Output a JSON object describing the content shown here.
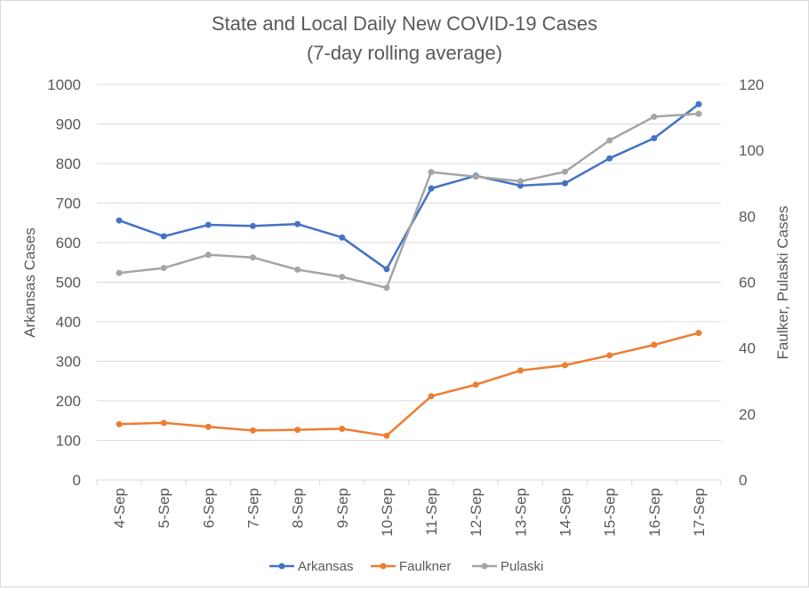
{
  "chart_data": {
    "type": "line",
    "title": "State and Local Daily New COVID-19 Cases",
    "subtitle": "(7-day rolling average)",
    "categories": [
      "4-Sep",
      "5-Sep",
      "6-Sep",
      "7-Sep",
      "8-Sep",
      "9-Sep",
      "10-Sep",
      "11-Sep",
      "12-Sep",
      "13-Sep",
      "14-Sep",
      "15-Sep",
      "16-Sep",
      "17-Sep"
    ],
    "ylabel": "Arkansas Cases",
    "y2label": "Faulker, Pulaski Cases",
    "ylim": [
      0,
      1000
    ],
    "yticks": [
      "0",
      "100",
      "200",
      "300",
      "400",
      "500",
      "600",
      "700",
      "800",
      "900",
      "1000"
    ],
    "y2lim": [
      0,
      120
    ],
    "y2ticks": [
      "0",
      "20",
      "40",
      "60",
      "80",
      "100",
      "120"
    ],
    "grid": true,
    "legend_position": "bottom",
    "series": [
      {
        "name": "Arkansas",
        "axis": "left",
        "color": "#4472c4",
        "values": [
          656,
          616,
          645,
          642,
          647,
          613,
          533,
          737,
          769,
          744,
          750,
          813,
          864,
          950
        ]
      },
      {
        "name": "Faulkner",
        "axis": "right",
        "color": "#ed7d31",
        "values": [
          16.9,
          17.3,
          16.1,
          15.0,
          15.2,
          15.5,
          13.4,
          25.4,
          28.9,
          33.2,
          34.8,
          37.8,
          41.0,
          44.6
        ]
      },
      {
        "name": "Pulaski",
        "axis": "right",
        "color": "#a5a5a5",
        "values": [
          62.8,
          64.3,
          68.3,
          67.5,
          63.8,
          61.6,
          58.3,
          93.4,
          92.0,
          90.6,
          93.5,
          103.0,
          110.2,
          111.1
        ]
      }
    ]
  }
}
